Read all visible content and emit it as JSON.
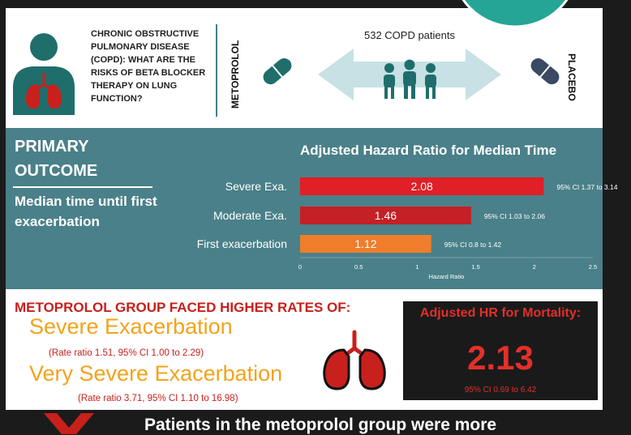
{
  "top": {
    "question": "CHRONIC OBSTRUCTIVE PULMONARY DISEASE (COPD): WHAT ARE THE RISKS OF BETA BLOCKER THERAPY ON LUNG FUNCTION?",
    "left_arm": "METOPROLOL",
    "right_arm": "PLACEBO",
    "patients": "532 COPD patients"
  },
  "outcome": {
    "heading": "PRIMARY OUTCOME",
    "measure": "Median time until first exacerbation"
  },
  "chart_data": {
    "type": "bar",
    "orientation": "horizontal",
    "title": "Adjusted Hazard Ratio for Median Time",
    "xlabel": "Hazard Ratio",
    "ylabel": "",
    "xlim": [
      0,
      2.5
    ],
    "xticks": [
      "0",
      "0.5",
      "1",
      "1.5",
      "2",
      "2.5"
    ],
    "grid": false,
    "categories": [
      "Severe Exa.",
      "Moderate Exa.",
      "First exacerbation"
    ],
    "values": [
      2.08,
      1.46,
      1.12
    ],
    "value_labels": [
      "2.08",
      "1.46",
      "1.12"
    ],
    "ci_labels": [
      "95% CI 1.37 to 3.14",
      "95% CI 1.03 to 2.06",
      "95% CI 0.8 to 1.42"
    ],
    "colors": [
      "#e01f26",
      "#c42026",
      "#ef7d2b"
    ]
  },
  "rates": {
    "heading": "METOPROLOL GROUP FACED HIGHER RATES OF:",
    "item1": "Severe Exacerbation",
    "item1_rate": "(Rate ratio 1.51, 95% CI 1.00 to 2.29)",
    "item2": "Very Severe Exacerbation",
    "item2_rate": "(Rate ratio 3.71, 95% CI 1.10 to 16.98)"
  },
  "mortality": {
    "title": "Adjusted HR for Mortality:",
    "value": "2.13",
    "ci": "95% CI 0.69 to 6.42"
  },
  "banner": {
    "text": "Patients in the metoprolol group were more"
  },
  "colors": {
    "teal": "#4a8089",
    "accent_red": "#c8201c",
    "accent_orange": "#f2a31b",
    "pill": "#1f6e6c",
    "placebo_pill": "#3a4a63"
  }
}
